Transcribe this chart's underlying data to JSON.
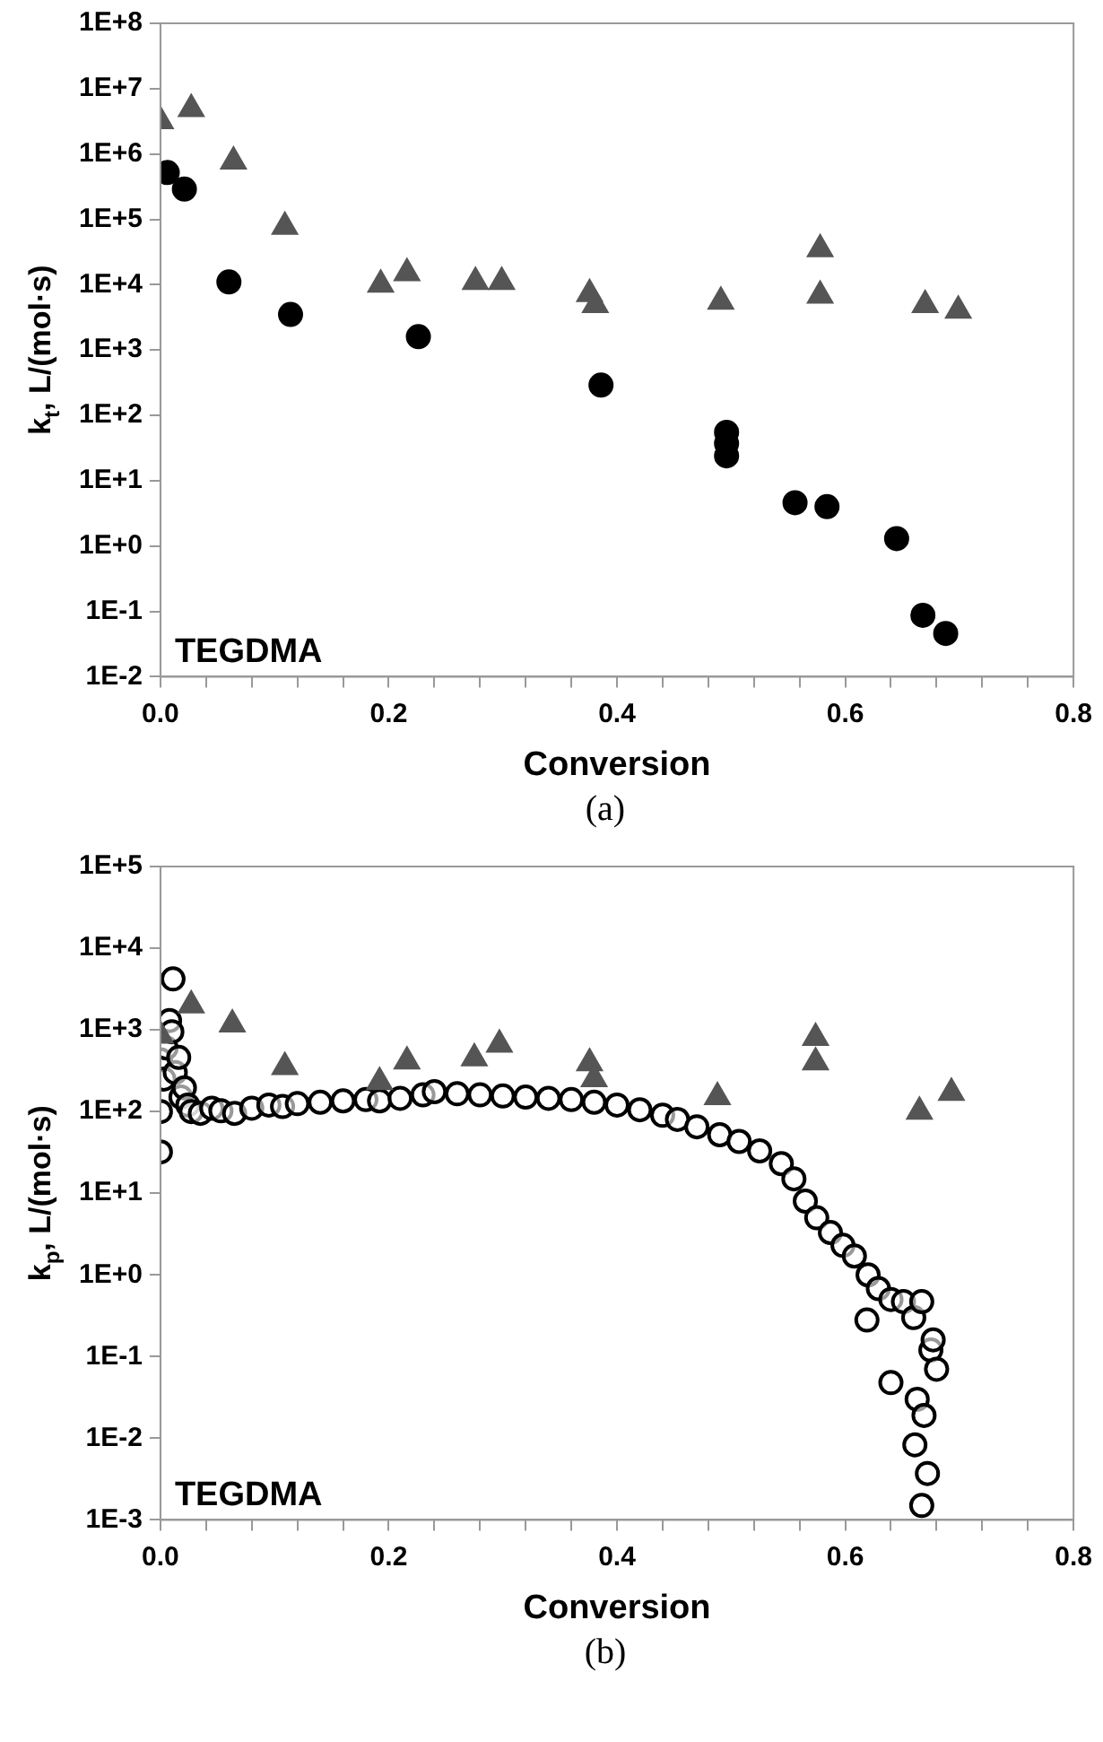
{
  "chart_data": [
    {
      "type": "scatter",
      "xlabel": "Conversion",
      "ylabel": "k$_{t}$, L/(mol·s)",
      "annotations": [
        "TEGDMA",
        "(a)"
      ],
      "xlim": [
        0,
        0.8
      ],
      "ylim": [
        0.01,
        100000000
      ],
      "xticks": [
        {
          "value": 0,
          "label": "0.0"
        },
        {
          "value": 0.04,
          "label": null
        },
        {
          "value": 0.08,
          "label": null
        },
        {
          "value": 0.12,
          "label": null
        },
        {
          "value": 0.16,
          "label": null
        },
        0.2,
        {
          "value": 0.24,
          "label": null
        },
        {
          "value": 0.28,
          "label": null
        },
        {
          "value": 0.32,
          "label": null
        },
        {
          "value": 0.36,
          "label": null
        },
        0.4,
        {
          "value": 0.44,
          "label": null
        },
        {
          "value": 0.48,
          "label": null
        },
        {
          "value": 0.52,
          "label": null
        },
        {
          "value": 0.56,
          "label": null
        },
        0.6,
        {
          "value": 0.64,
          "label": null
        },
        {
          "value": 0.68,
          "label": null
        },
        {
          "value": 0.72,
          "label": null
        },
        {
          "value": 0.76,
          "label": null
        },
        0.8
      ],
      "yticks": [
        {
          "value": 0.01,
          "label": "1E-2"
        },
        {
          "value": 0.1,
          "label": "1E-1"
        },
        {
          "value": 1,
          "label": "1E+0"
        },
        {
          "value": 10,
          "label": "1E+1"
        },
        {
          "value": 100,
          "label": "1E+2"
        },
        {
          "value": 1000,
          "label": "1E+3"
        },
        {
          "value": 10000,
          "label": "1E+4"
        },
        {
          "value": 100000,
          "label": "1E+5"
        },
        {
          "value": 1000000,
          "label": "1E+6"
        },
        {
          "value": 10000000,
          "label": "1E+7"
        },
        {
          "value": 100000000,
          "label": "1E+8"
        }
      ],
      "log": "y",
      "grid": false,
      "legend": false,
      "series": [
        {
          "color": "#555555",
          "marker": "triangle",
          "x": [
            0,
            0.027,
            0.064,
            0.109,
            0.193,
            0.216,
            0.276,
            0.299,
            0.376,
            0.381,
            0.491,
            0.578,
            0.578,
            0.67,
            0.699
          ],
          "values": [
            3200000,
            4900000,
            770000,
            77000,
            10000,
            15000,
            11000,
            11000,
            7200,
            4900,
            5500,
            35000,
            6800,
            4900,
            4000
          ]
        },
        {
          "color": "#000000",
          "marker": "circle",
          "x": [
            0.006,
            0.021,
            0.06,
            0.114,
            0.226,
            0.386,
            0.496,
            0.496,
            0.496,
            0.556,
            0.584,
            0.645,
            0.668,
            0.688
          ],
          "values": [
            520000,
            290000,
            11000,
            3500,
            1600,
            290,
            55,
            37,
            24,
            4.6,
            4,
            1.3,
            0.087,
            0.046
          ]
        }
      ]
    },
    {
      "type": "scatter",
      "xlabel": "Conversion",
      "ylabel": "k$_{p}$, L/(mol·s)",
      "annotations": [
        "TEGDMA",
        "(b)"
      ],
      "xlim": [
        0,
        0.8
      ],
      "ylim": [
        0.001,
        100000
      ],
      "xticks": [
        {
          "value": 0,
          "label": "0.0"
        },
        {
          "value": 0.04,
          "label": null
        },
        {
          "value": 0.08,
          "label": null
        },
        {
          "value": 0.12,
          "label": null
        },
        {
          "value": 0.16,
          "label": null
        },
        0.2,
        {
          "value": 0.24,
          "label": null
        },
        {
          "value": 0.28,
          "label": null
        },
        {
          "value": 0.32,
          "label": null
        },
        {
          "value": 0.36,
          "label": null
        },
        0.4,
        {
          "value": 0.44,
          "label": null
        },
        {
          "value": 0.48,
          "label": null
        },
        {
          "value": 0.52,
          "label": null
        },
        {
          "value": 0.56,
          "label": null
        },
        0.6,
        {
          "value": 0.64,
          "label": null
        },
        {
          "value": 0.68,
          "label": null
        },
        {
          "value": 0.72,
          "label": null
        },
        {
          "value": 0.76,
          "label": null
        },
        0.8
      ],
      "yticks": [
        {
          "value": 0.001,
          "label": "1E-3"
        },
        {
          "value": 0.01,
          "label": "1E-2"
        },
        {
          "value": 0.1,
          "label": "1E-1"
        },
        {
          "value": 1,
          "label": "1E+0"
        },
        {
          "value": 10,
          "label": "1E+1"
        },
        {
          "value": 100,
          "label": "1E+2"
        },
        {
          "value": 1000,
          "label": "1E+3"
        },
        {
          "value": 10000,
          "label": "1E+4"
        },
        {
          "value": 100000,
          "label": "1E+5"
        }
      ],
      "log": "y",
      "grid": false,
      "legend": false,
      "series": [
        {
          "color": "#555555",
          "marker": "triangle",
          "x": [
            0,
            0.027,
            0.063,
            0.109,
            0.192,
            0.216,
            0.275,
            0.297,
            0.376,
            0.38,
            0.488,
            0.574,
            0.574,
            0.665,
            0.693
          ],
          "values": [
            850,
            2000,
            1170,
            350,
            230,
            410,
            450,
            660,
            390,
            250,
            150,
            800,
            400,
            100,
            170
          ]
        },
        {
          "color": "#000000",
          "marker": "circle",
          "x": [
            0,
            0,
            0,
            0.003,
            0.005,
            0.008,
            0.01,
            0.011,
            0.013,
            0.016,
            0.018,
            0.021,
            0.024,
            0.027,
            0.035,
            0.045,
            0.053,
            0.065,
            0.08,
            0.095,
            0.107,
            0.12,
            0.14,
            0.16,
            0.18,
            0.192,
            0.21,
            0.23,
            0.24,
            0.26,
            0.28,
            0.3,
            0.32,
            0.34,
            0.36,
            0.38,
            0.4,
            0.42,
            0.44,
            0.453,
            0.47,
            0.49,
            0.507,
            0.525,
            0.544,
            0.555,
            0.565,
            0.575,
            0.587,
            0.598,
            0.608,
            0.619,
            0.62,
            0.629,
            0.64,
            0.64,
            0.651,
            0.66,
            0.661,
            0.663,
            0.667,
            0.667,
            0.669,
            0.672,
            0.675,
            0.677,
            0.68
          ],
          "values": [
            32,
            100,
            430,
            250,
            600,
            1300,
            950,
            4200,
            300,
            460,
            150,
            195,
            120,
            100,
            95,
            110,
            102,
            95,
            110,
            120,
            115,
            125,
            130,
            135,
            140,
            135,
            145,
            160,
            175,
            165,
            160,
            155,
            150,
            145,
            140,
            130,
            120,
            105,
            90,
            80,
            65,
            52,
            43,
            33,
            23,
            15,
            8,
            5,
            3.3,
            2.3,
            1.7,
            0.28,
            1,
            0.68,
            0.048,
            0.5,
            0.47,
            0.3,
            0.0083,
            0.03,
            0.47,
            0.0015,
            0.019,
            0.0037,
            0.12,
            0.16,
            0.07
          ]
        }
      ]
    }
  ]
}
